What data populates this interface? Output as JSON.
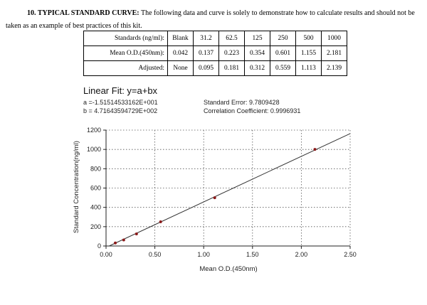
{
  "intro": {
    "heading": "10. TYPICAL STANDARD CURVE:",
    "text_line1": "The following data and curve is solely to demonstrate how to calculate results and should not be",
    "text_line2": "taken as an example of best practices of this kit."
  },
  "table": {
    "rows": [
      [
        "Standards (ng/ml):",
        "Blank",
        "31.2",
        "62.5",
        "125",
        "250",
        "500",
        "1000"
      ],
      [
        "Mean O.D.(450nm):",
        "0.042",
        "0.137",
        "0.223",
        "0.354",
        "0.601",
        "1.155",
        "2.181"
      ],
      [
        "Adjusted:",
        "None",
        "0.095",
        "0.181",
        "0.312",
        "0.559",
        "1.113",
        "2.139"
      ]
    ]
  },
  "fit": {
    "title": "Linear Fit: y=a+bx",
    "a": "a =-1.51514533162E+001",
    "b": "b = 4.71643594729E+002",
    "std_error": "Standard Error: 9.7809428",
    "corr": "Correlation Coefficient: 0.9996931"
  },
  "chart_data": {
    "type": "scatter",
    "title": "",
    "xlabel": "Mean O.D.(450nm)",
    "ylabel": "Standard Concentration(ng/ml)",
    "xlim": [
      0,
      2.5
    ],
    "ylim": [
      0,
      1200
    ],
    "x_ticks": [
      "0.00",
      "0.50",
      "1.00",
      "1.50",
      "2.00",
      "2.50"
    ],
    "y_ticks": [
      "0",
      "200",
      "400",
      "600",
      "800",
      "1000",
      "1200"
    ],
    "grid": true,
    "points": [
      {
        "x": 0.095,
        "y": 31.2
      },
      {
        "x": 0.181,
        "y": 62.5
      },
      {
        "x": 0.312,
        "y": 125
      },
      {
        "x": 0.559,
        "y": 250
      },
      {
        "x": 1.113,
        "y": 500
      },
      {
        "x": 2.139,
        "y": 1000
      }
    ],
    "fit_line": {
      "a": -15.1514533162,
      "b": 471.643594729,
      "x_range": [
        0.0,
        2.5
      ]
    },
    "colors": {
      "line": "#333333",
      "point": "#8b1a1a",
      "grid": "#555555"
    }
  }
}
